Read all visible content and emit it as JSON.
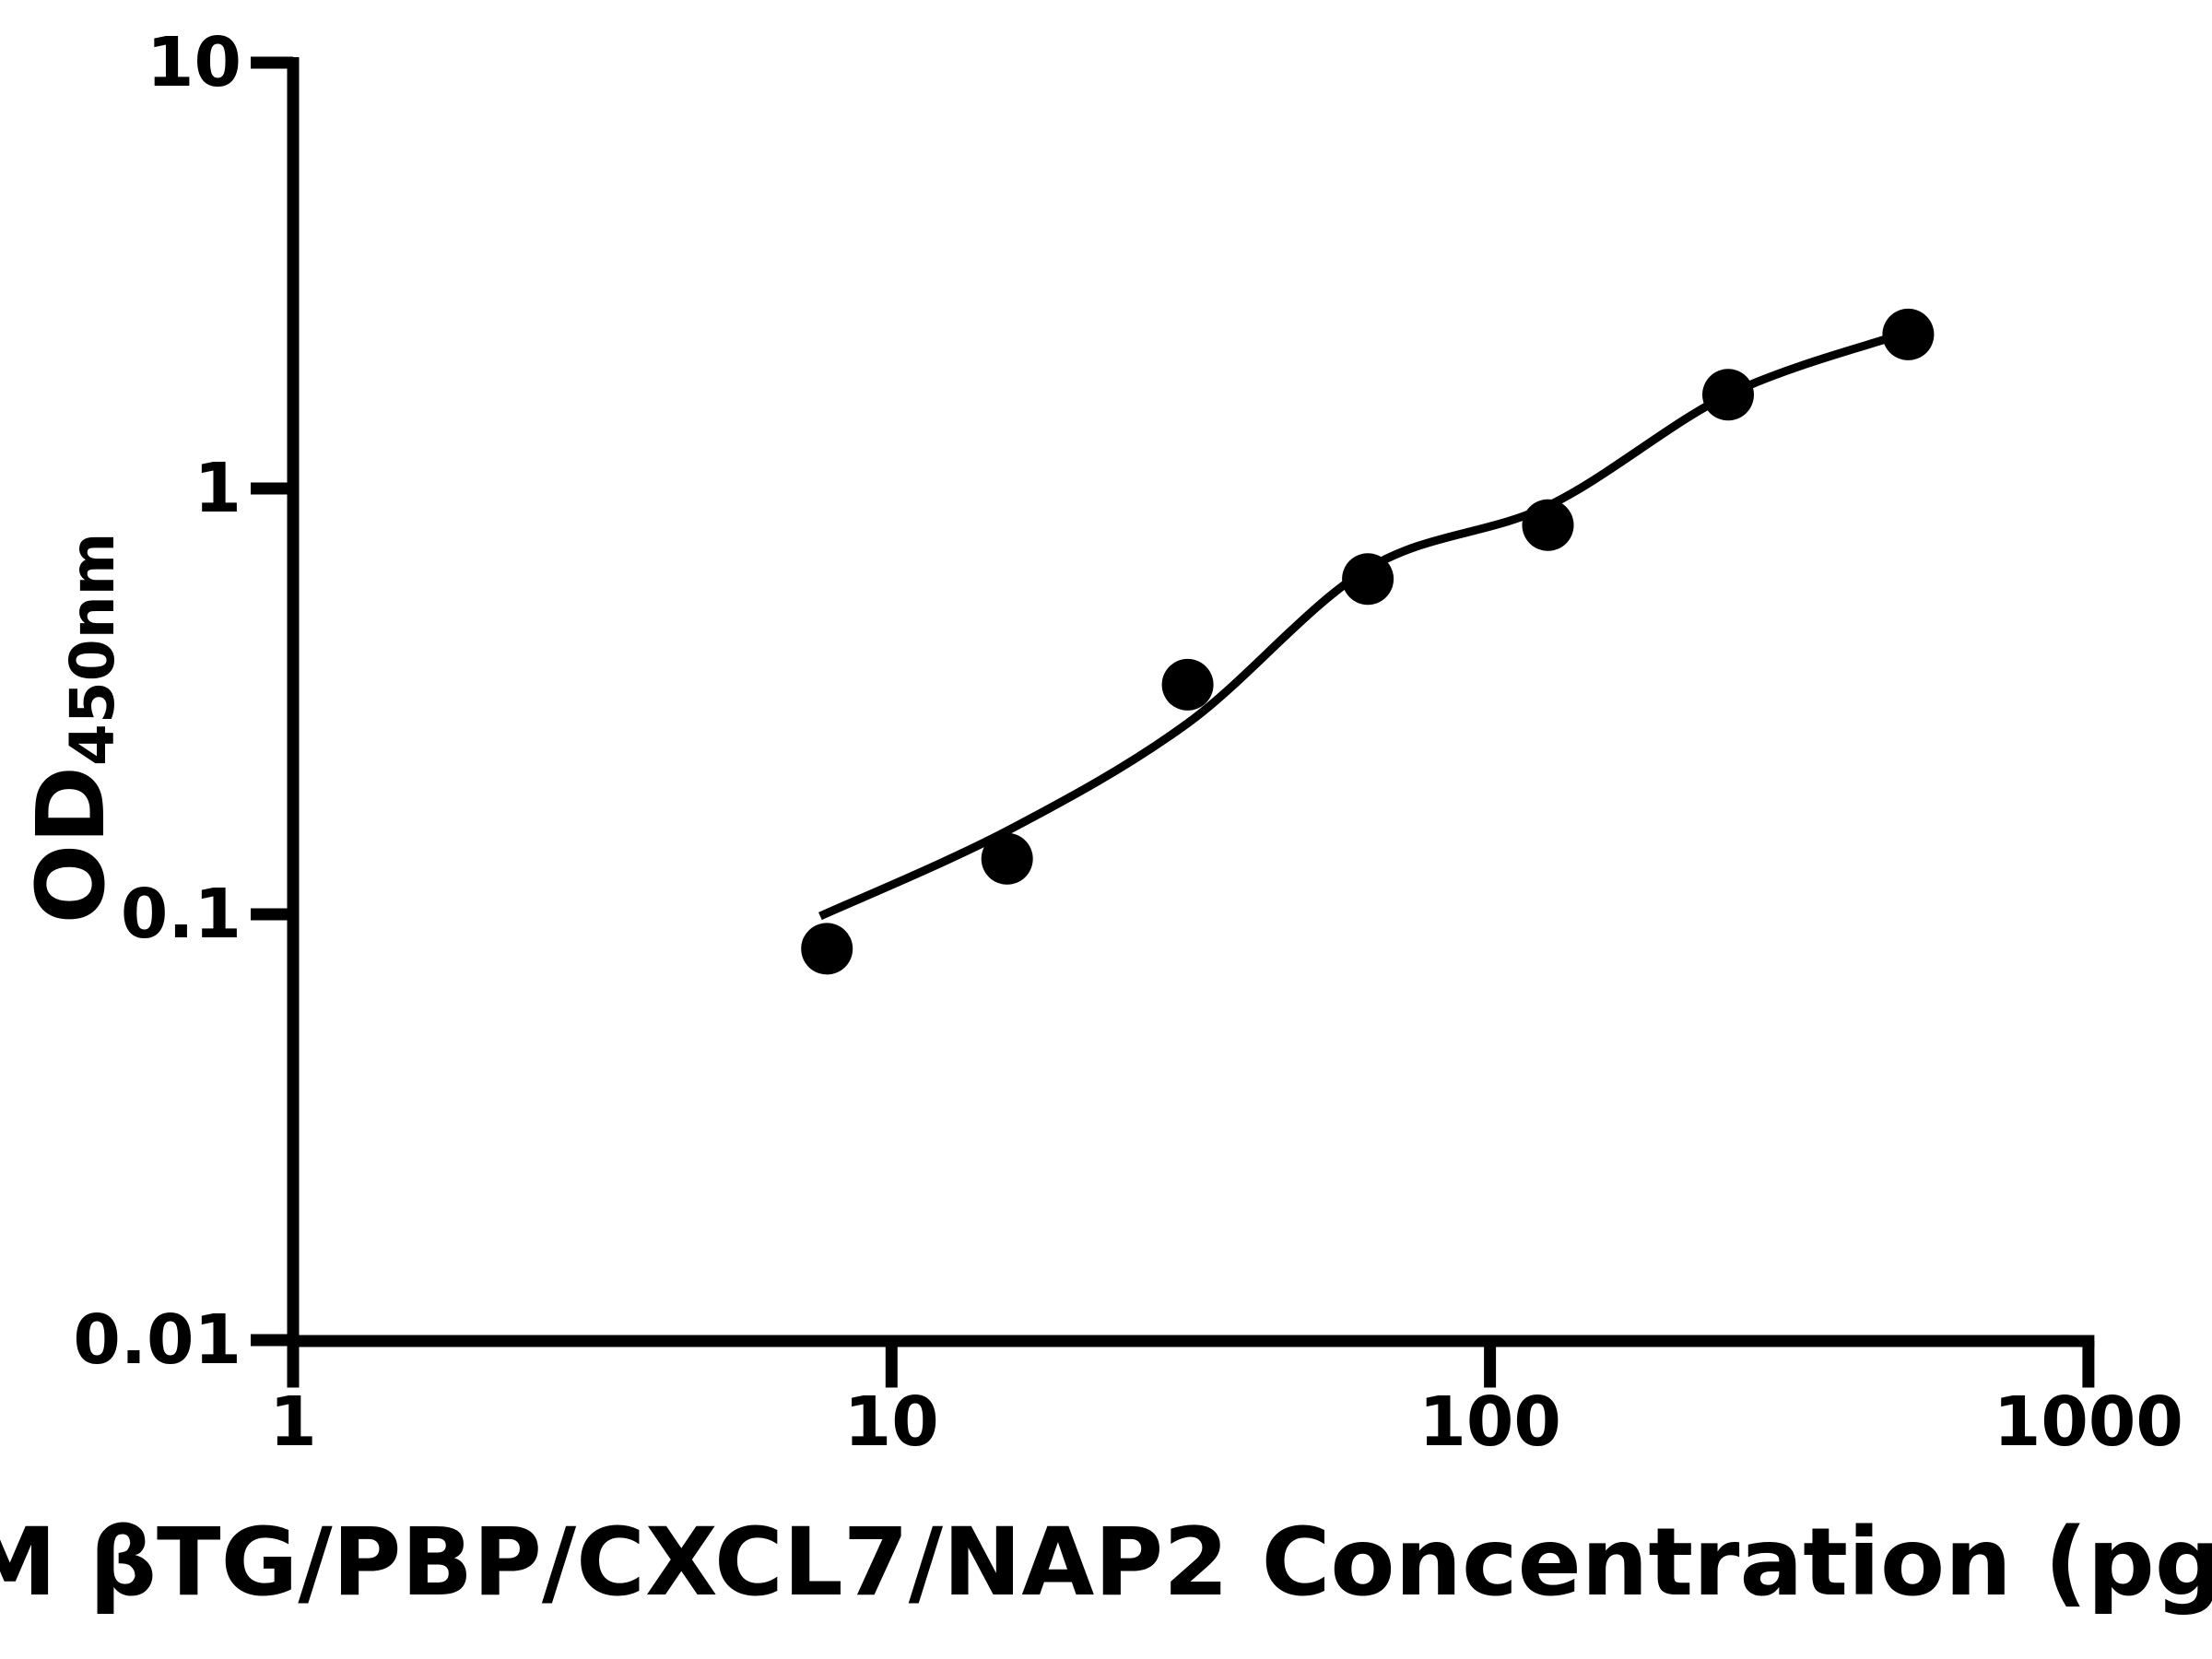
{
  "page": {
    "background_color": "#ffffff",
    "foreground_color": "#000000"
  },
  "chart_data": {
    "type": "scatter",
    "x_scale": "log",
    "y_scale": "log",
    "xlim": [
      1,
      1000
    ],
    "ylim": [
      0.01,
      10
    ],
    "grid": false,
    "legend": false,
    "x_axis_label_visible": "M βTG/PBP/CXCL7/NAP2 Concentration (pg/",
    "y_axis_label": "OD",
    "y_axis_label_subscript": "450nm",
    "x_ticks": [
      {
        "value": 1,
        "label": "1"
      },
      {
        "value": 10,
        "label": "10"
      },
      {
        "value": 100,
        "label": "100"
      },
      {
        "value": 1000,
        "label": "1000"
      }
    ],
    "y_ticks": [
      {
        "value": 10,
        "label": "10"
      },
      {
        "value": 1,
        "label": "1"
      },
      {
        "value": 0.1,
        "label": "0.1"
      },
      {
        "value": 0.01,
        "label": "0.01"
      }
    ],
    "series": [
      {
        "name": "standard-curve-points",
        "marker": "filled-circle",
        "color": "#000000",
        "points": [
          {
            "concentration_pg_ml": 7.8,
            "od": 0.083
          },
          {
            "concentration_pg_ml": 15.6,
            "od": 0.135
          },
          {
            "concentration_pg_ml": 31.25,
            "od": 0.346
          },
          {
            "concentration_pg_ml": 62.5,
            "od": 0.613
          },
          {
            "concentration_pg_ml": 125,
            "od": 0.82
          },
          {
            "concentration_pg_ml": 250,
            "od": 1.66
          },
          {
            "concentration_pg_ml": 500,
            "od": 2.3
          }
        ]
      }
    ],
    "fit_curve_points": [
      {
        "concentration_pg_ml": 7.6,
        "od": 0.099
      },
      {
        "concentration_pg_ml": 15.6,
        "od": 0.157
      },
      {
        "concentration_pg_ml": 31.25,
        "od": 0.281
      },
      {
        "concentration_pg_ml": 62.5,
        "od": 0.648
      },
      {
        "concentration_pg_ml": 125,
        "od": 0.91
      },
      {
        "concentration_pg_ml": 250,
        "od": 1.66
      },
      {
        "concentration_pg_ml": 485,
        "od": 2.3
      }
    ]
  }
}
